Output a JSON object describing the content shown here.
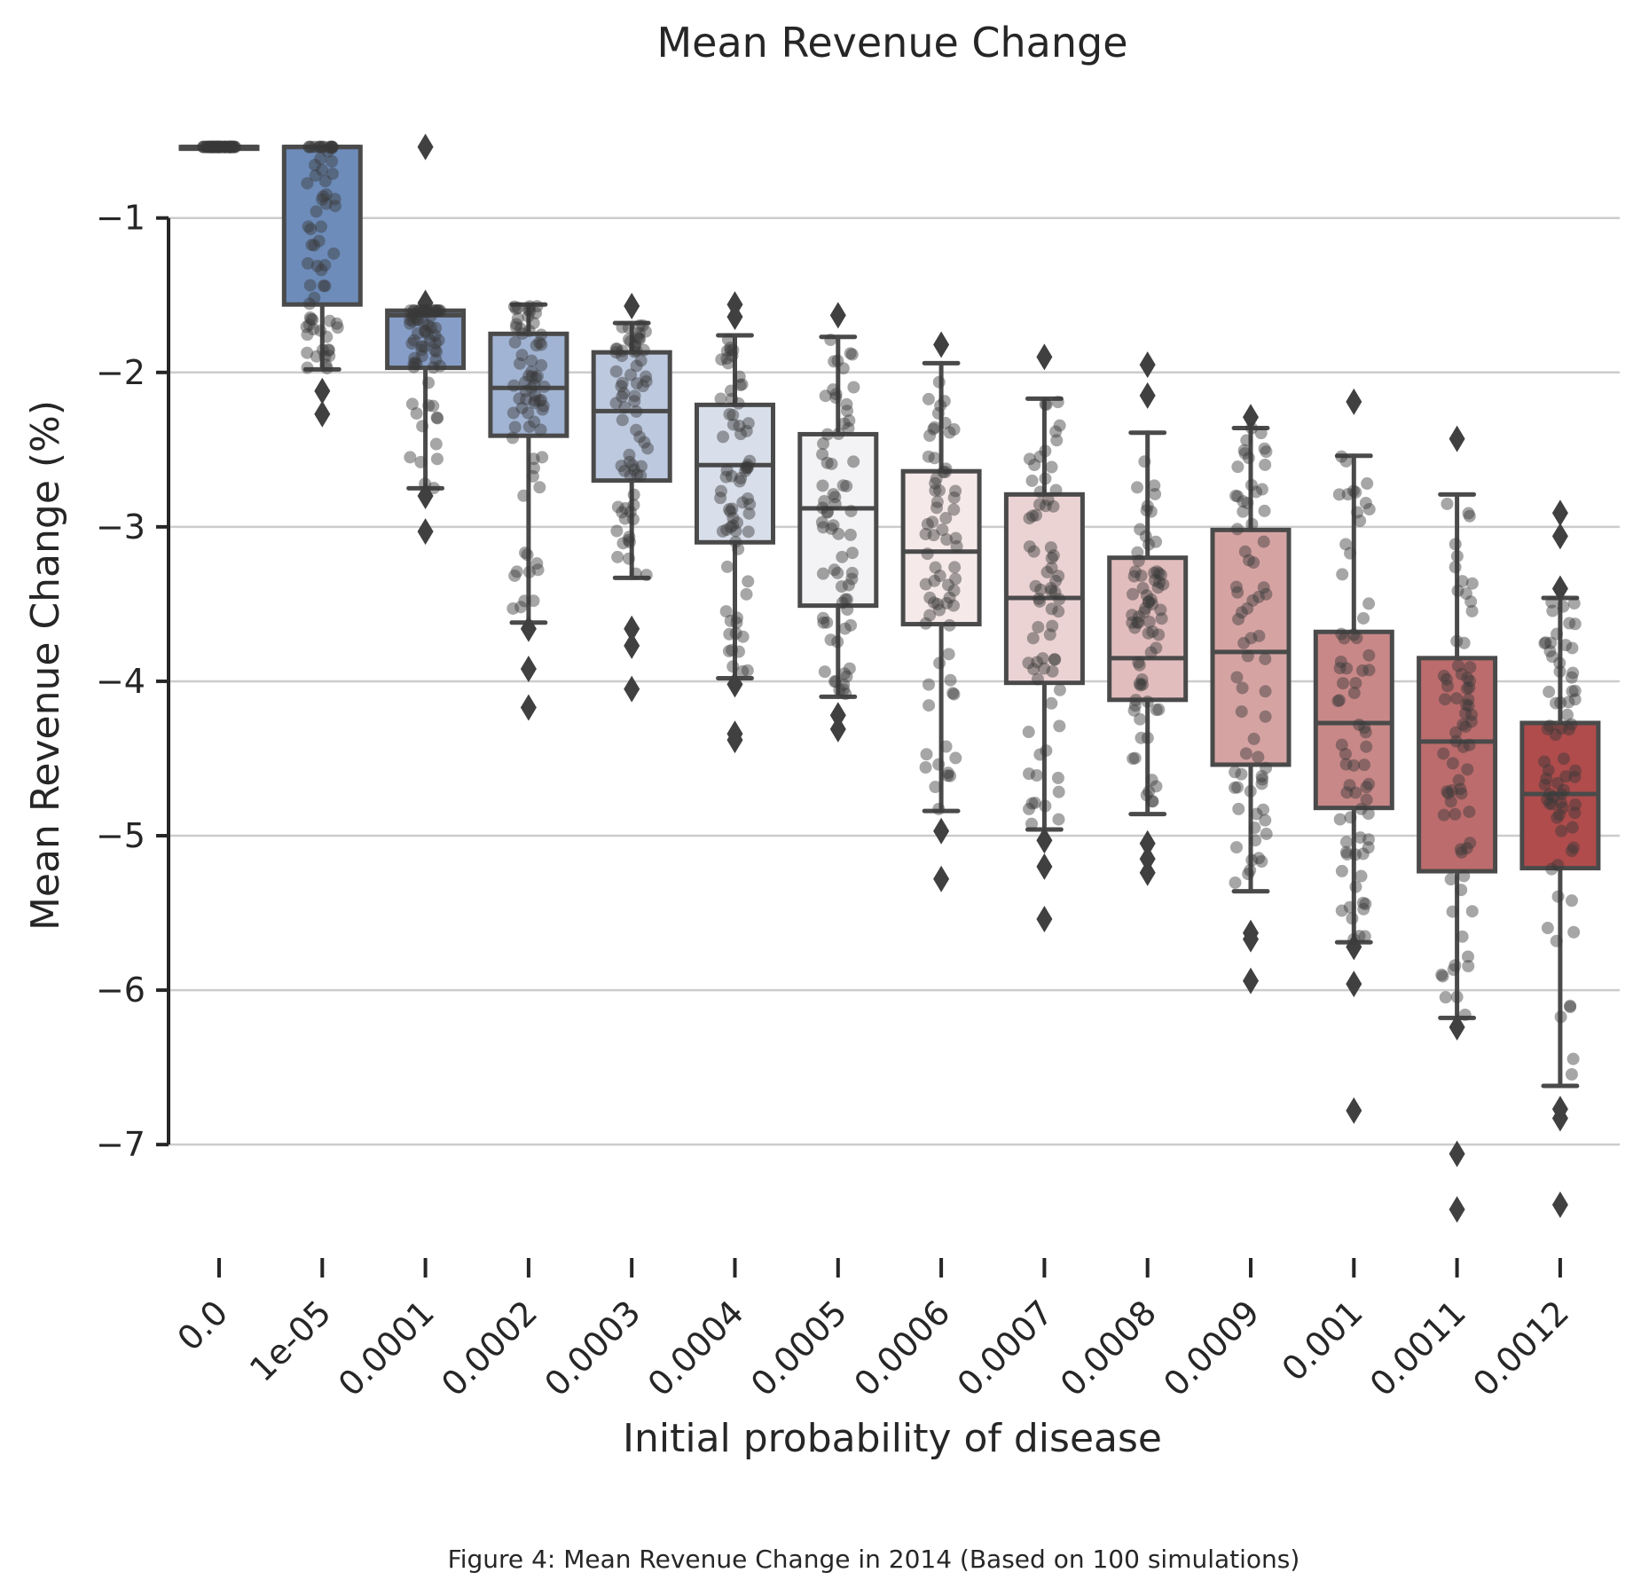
{
  "chart_data": {
    "type": "box",
    "title": "Mean Revenue Change",
    "xlabel": "Initial probability of disease",
    "ylabel": "Mean Revenue Change (%)",
    "caption": "Figure 4: Mean Revenue Change in 2014 (Based on 100 simulations)",
    "ylim": [
      -7.7,
      -0.45
    ],
    "yticks": [
      -1,
      -2,
      -3,
      -4,
      -5,
      -6,
      -7
    ],
    "ytick_labels": [
      "−1",
      "−2",
      "−3",
      "−4",
      "−5",
      "−6",
      "−7"
    ],
    "grid": true,
    "overlay": "stripplot",
    "categories": [
      "0.0",
      "1e-05",
      "0.0001",
      "0.0002",
      "0.0003",
      "0.0004",
      "0.0005",
      "0.0006",
      "0.0007",
      "0.0008",
      "0.0009",
      "0.001",
      "0.0011",
      "0.0012"
    ],
    "colors": [
      "#4c72b0",
      "#6d8cba",
      "#879fc8",
      "#a2b4d3",
      "#bdc9de",
      "#d8dfea",
      "#f3f3f5",
      "#f6e9e9",
      "#ecd3d3",
      "#e2bdbd",
      "#d6a3a3",
      "#c98888",
      "#bc6c6c",
      "#b04c4c"
    ],
    "boxes": [
      {
        "q1": -0.54,
        "median": -0.54,
        "q3": -0.54,
        "whislo": -0.54,
        "whishi": -0.54,
        "fliers": []
      },
      {
        "q1": -1.56,
        "median": -0.54,
        "q3": -0.54,
        "whislo": -1.98,
        "whishi": -0.54,
        "fliers": [
          -2.12,
          -2.27
        ]
      },
      {
        "q1": -1.97,
        "median": -1.63,
        "q3": -1.6,
        "whislo": -2.75,
        "whishi": -1.6,
        "fliers": [
          -0.54,
          -1.55,
          -2.8,
          -3.03
        ]
      },
      {
        "q1": -2.41,
        "median": -2.1,
        "q3": -1.75,
        "whislo": -3.62,
        "whishi": -1.56,
        "fliers": [
          -3.66,
          -3.92,
          -4.17
        ]
      },
      {
        "q1": -2.7,
        "median": -2.25,
        "q3": -1.87,
        "whislo": -3.33,
        "whishi": -1.68,
        "fliers": [
          -1.57,
          -3.66,
          -3.77,
          -4.05
        ]
      },
      {
        "q1": -3.1,
        "median": -2.6,
        "q3": -2.21,
        "whislo": -3.98,
        "whishi": -1.76,
        "fliers": [
          -1.56,
          -1.64,
          -4.02,
          -4.34,
          -4.38
        ]
      },
      {
        "q1": -3.51,
        "median": -2.88,
        "q3": -2.4,
        "whislo": -4.1,
        "whishi": -1.77,
        "fliers": [
          -1.63,
          -4.22,
          -4.31
        ]
      },
      {
        "q1": -3.63,
        "median": -3.16,
        "q3": -2.64,
        "whislo": -4.84,
        "whishi": -1.94,
        "fliers": [
          -1.82,
          -4.97,
          -5.28
        ]
      },
      {
        "q1": -4.01,
        "median": -3.46,
        "q3": -2.79,
        "whislo": -4.96,
        "whishi": -2.17,
        "fliers": [
          -1.9,
          -5.03,
          -5.2,
          -5.54
        ]
      },
      {
        "q1": -4.12,
        "median": -3.85,
        "q3": -3.2,
        "whislo": -4.86,
        "whishi": -2.39,
        "fliers": [
          -1.95,
          -2.15,
          -5.05,
          -5.15,
          -5.24
        ]
      },
      {
        "q1": -4.54,
        "median": -3.81,
        "q3": -3.02,
        "whislo": -5.36,
        "whishi": -2.36,
        "fliers": [
          -2.29,
          -5.63,
          -5.67,
          -5.94
        ]
      },
      {
        "q1": -4.82,
        "median": -4.27,
        "q3": -3.68,
        "whislo": -5.69,
        "whishi": -2.54,
        "fliers": [
          -2.19,
          -5.72,
          -5.96,
          -6.78
        ]
      },
      {
        "q1": -5.23,
        "median": -4.39,
        "q3": -3.85,
        "whislo": -6.18,
        "whishi": -2.79,
        "fliers": [
          -2.43,
          -6.24,
          -7.06,
          -7.42
        ]
      },
      {
        "q1": -5.21,
        "median": -4.73,
        "q3": -4.27,
        "whislo": -6.62,
        "whishi": -3.46,
        "fliers": [
          -2.91,
          -3.06,
          -3.4,
          -6.77,
          -6.83,
          -7.39
        ]
      }
    ]
  }
}
